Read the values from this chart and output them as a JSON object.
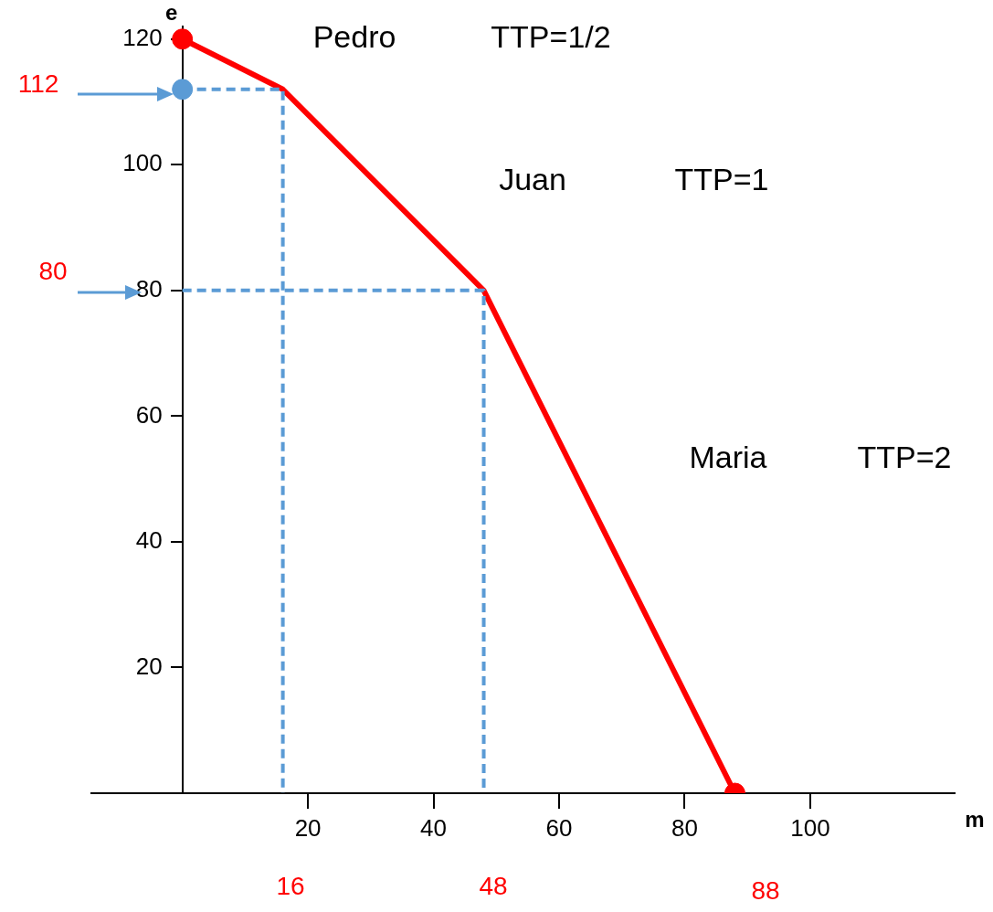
{
  "chart_data": {
    "type": "line",
    "xlabel": "m",
    "ylabel": "e",
    "xlim": [
      -14.5,
      123
    ],
    "ylim": [
      0,
      122
    ],
    "xticks": [
      20,
      40,
      60,
      80,
      100
    ],
    "yticks": [
      20,
      40,
      60,
      80,
      100,
      120
    ],
    "grid": false,
    "legend": false,
    "series": [
      {
        "color": "#ff0000",
        "x": [
          0,
          16,
          48,
          88
        ],
        "values": [
          120,
          112,
          80,
          0
        ],
        "marker": "none"
      },
      {
        "color": "#5b9bd5",
        "x": [
          0,
          16,
          16
        ],
        "values": [
          112,
          112,
          0
        ],
        "marker": "none",
        "line_style": "dashed"
      },
      {
        "color": "#5b9bd5",
        "x": [
          0,
          48,
          48
        ],
        "values": [
          80,
          80,
          0
        ],
        "marker": "none",
        "line_style": "dashed"
      },
      {
        "type": "scatter",
        "color": "#ff0000",
        "x": [
          0,
          88
        ],
        "values": [
          120,
          0
        ],
        "marker": "circle"
      },
      {
        "type": "scatter",
        "color": "#5b9bd5",
        "x": [
          0
        ],
        "values": [
          112
        ],
        "marker": "circle"
      }
    ],
    "annotations": [
      "112",
      "80",
      "16",
      "48",
      "88",
      "Pedro",
      "TTP=1/2",
      "Juan",
      "TTP=1",
      "Maria",
      "TTP=2"
    ]
  }
}
